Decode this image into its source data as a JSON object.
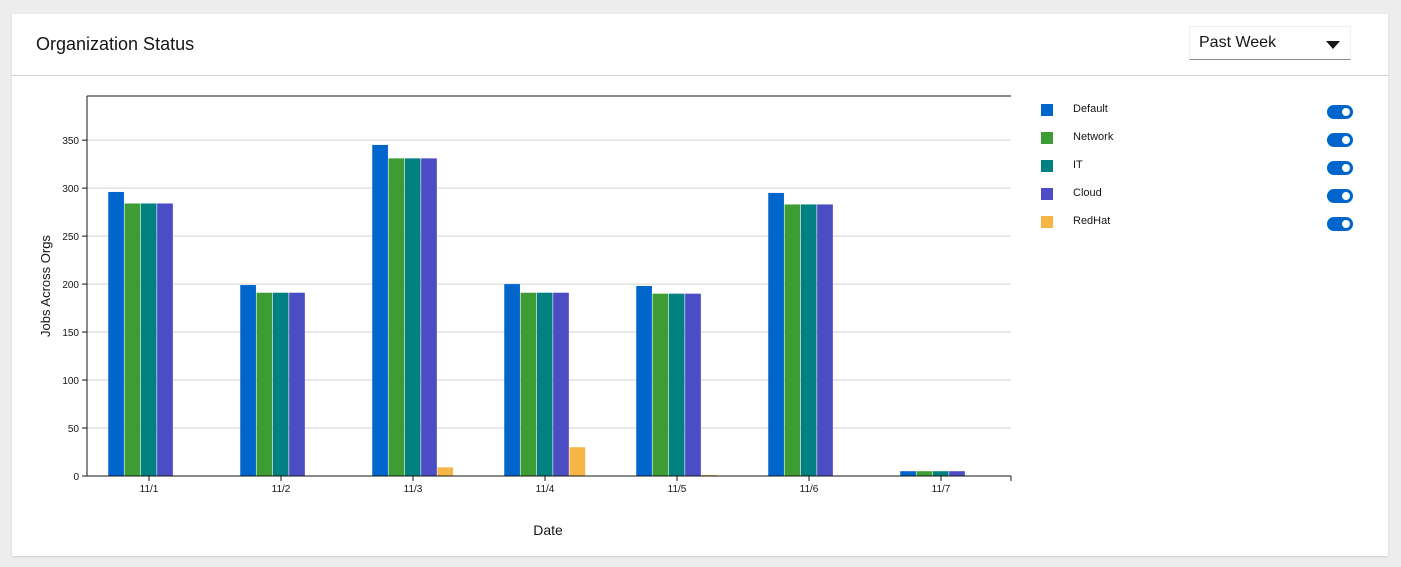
{
  "header": {
    "title": "Organization Status",
    "period_select": {
      "value": "Past Week"
    }
  },
  "legend": {
    "items": [
      {
        "label": "Default",
        "color": "#0066cc",
        "enabled": true
      },
      {
        "label": "Network",
        "color": "#3e9c35",
        "enabled": true
      },
      {
        "label": "IT",
        "color": "#008080",
        "enabled": true
      },
      {
        "label": "Cloud",
        "color": "#4c4cc4",
        "enabled": true
      },
      {
        "label": "RedHat",
        "color": "#f6b545",
        "enabled": true
      }
    ]
  },
  "chart_data": {
    "type": "bar",
    "categories": [
      "11/1",
      "11/2",
      "11/3",
      "11/4",
      "11/5",
      "11/6",
      "11/7"
    ],
    "series": [
      {
        "name": "Default",
        "color": "#0066cc",
        "values": [
          296,
          199,
          345,
          200,
          198,
          295,
          5
        ]
      },
      {
        "name": "Network",
        "color": "#3e9c35",
        "values": [
          284,
          191,
          331,
          191,
          190,
          283,
          5
        ]
      },
      {
        "name": "IT",
        "color": "#008080",
        "values": [
          284,
          191,
          331,
          191,
          190,
          283,
          5
        ]
      },
      {
        "name": "Cloud",
        "color": "#4c4cc4",
        "values": [
          284,
          191,
          331,
          191,
          190,
          283,
          5
        ]
      },
      {
        "name": "RedHat",
        "color": "#f6b545",
        "values": [
          0,
          0,
          9,
          30,
          1,
          0,
          0
        ]
      }
    ],
    "xlabel": "Date",
    "ylabel": "Jobs Across Orgs",
    "ylim": [
      0,
      396
    ],
    "yticks": [
      0,
      50,
      100,
      150,
      200,
      250,
      300,
      350
    ],
    "grid": true,
    "legend_position": "right"
  }
}
